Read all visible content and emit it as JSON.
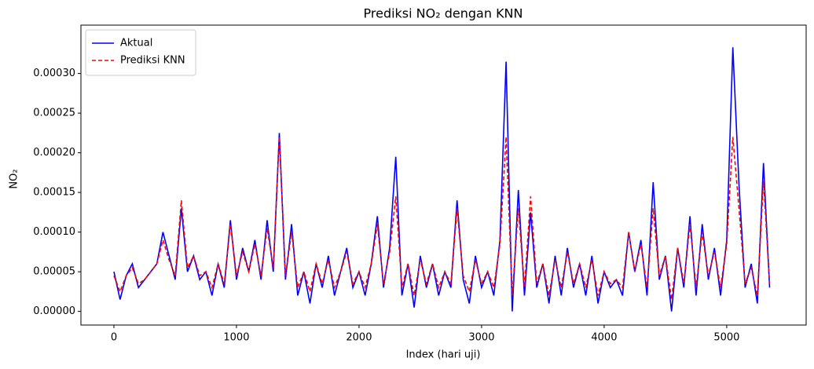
{
  "chart_data": {
    "type": "line",
    "title": "Prediksi NO₂ dengan KNN",
    "xlabel": "Index (hari uji)",
    "ylabel": "NO₂",
    "x": [
      0,
      50,
      100,
      150,
      200,
      250,
      300,
      350,
      400,
      450,
      500,
      550,
      600,
      650,
      700,
      750,
      800,
      850,
      900,
      950,
      1000,
      1050,
      1100,
      1150,
      1200,
      1250,
      1300,
      1350,
      1400,
      1450,
      1500,
      1550,
      1600,
      1650,
      1700,
      1750,
      1800,
      1850,
      1900,
      1950,
      2000,
      2050,
      2100,
      2150,
      2200,
      2250,
      2300,
      2350,
      2400,
      2450,
      2500,
      2550,
      2600,
      2650,
      2700,
      2750,
      2800,
      2850,
      2900,
      2950,
      3000,
      3050,
      3100,
      3150,
      3200,
      3250,
      3300,
      3350,
      3400,
      3450,
      3500,
      3550,
      3600,
      3650,
      3700,
      3750,
      3800,
      3850,
      3900,
      3950,
      4000,
      4050,
      4100,
      4150,
      4200,
      4250,
      4300,
      4350,
      4400,
      4450,
      4500,
      4550,
      4600,
      4650,
      4700,
      4750,
      4800,
      4850,
      4900,
      4950,
      5000,
      5050,
      5100,
      5150,
      5200,
      5250,
      5300,
      5350
    ],
    "series": [
      {
        "name": "Aktual",
        "color": "#0000ff",
        "dash": false,
        "values": [
          5e-05,
          1.5e-05,
          4.5e-05,
          6e-05,
          3e-05,
          4e-05,
          5e-05,
          6e-05,
          0.0001,
          7e-05,
          4e-05,
          0.00013,
          5e-05,
          7e-05,
          4e-05,
          5e-05,
          2e-05,
          6e-05,
          3e-05,
          0.000115,
          4e-05,
          8e-05,
          5e-05,
          9e-05,
          4e-05,
          0.000115,
          5e-05,
          0.000225,
          4e-05,
          0.00011,
          2e-05,
          5e-05,
          1e-05,
          6e-05,
          3e-05,
          7e-05,
          2e-05,
          5e-05,
          8e-05,
          3e-05,
          5e-05,
          2e-05,
          6e-05,
          0.00012,
          3e-05,
          8e-05,
          0.000195,
          2e-05,
          6e-05,
          5e-06,
          7e-05,
          3e-05,
          6e-05,
          2e-05,
          5e-05,
          3e-05,
          0.00014,
          4e-05,
          1e-05,
          7e-05,
          3e-05,
          5e-05,
          2e-05,
          9e-05,
          0.000315,
          0,
          0.000153,
          2e-05,
          0.000125,
          3e-05,
          6e-05,
          1e-05,
          7e-05,
          2e-05,
          8e-05,
          3e-05,
          6e-05,
          2e-05,
          7e-05,
          1e-05,
          5e-05,
          3e-05,
          4e-05,
          2e-05,
          0.0001,
          5e-05,
          9e-05,
          2e-05,
          0.000163,
          4e-05,
          7e-05,
          0,
          8e-05,
          3e-05,
          0.00012,
          2e-05,
          0.00011,
          4e-05,
          8e-05,
          2e-05,
          9e-05,
          0.000333,
          0.00016,
          3e-05,
          6e-05,
          1e-05,
          0.000187,
          3e-05
        ]
      },
      {
        "name": "Prediksi KNN",
        "color": "#ff0000",
        "dash": true,
        "values": [
          4.5e-05,
          2.5e-05,
          4.5e-05,
          5.5e-05,
          3.5e-05,
          4e-05,
          5e-05,
          6e-05,
          9e-05,
          6.5e-05,
          4.5e-05,
          0.00014,
          5.5e-05,
          7e-05,
          4.5e-05,
          5e-05,
          3e-05,
          6e-05,
          3.5e-05,
          0.00011,
          4.5e-05,
          7.5e-05,
          5e-05,
          8.5e-05,
          4.5e-05,
          0.000105,
          5.5e-05,
          0.00022,
          4.5e-05,
          0.0001,
          3e-05,
          5e-05,
          2.5e-05,
          6e-05,
          3.5e-05,
          6.5e-05,
          3e-05,
          5e-05,
          7.5e-05,
          3.5e-05,
          5e-05,
          3e-05,
          6e-05,
          0.00011,
          3.5e-05,
          7.5e-05,
          0.000145,
          3e-05,
          6e-05,
          2e-05,
          6.5e-05,
          3.5e-05,
          6e-05,
          3e-05,
          5e-05,
          3.5e-05,
          0.00013,
          4.5e-05,
          2.5e-05,
          6.5e-05,
          3.5e-05,
          5e-05,
          3e-05,
          8.5e-05,
          0.00022,
          2e-05,
          0.00013,
          3e-05,
          0.000145,
          3.5e-05,
          6e-05,
          2e-05,
          6.5e-05,
          3e-05,
          7.5e-05,
          3.5e-05,
          6e-05,
          3e-05,
          6.5e-05,
          2e-05,
          5e-05,
          3.5e-05,
          4e-05,
          3e-05,
          0.0001,
          5e-05,
          8.5e-05,
          3e-05,
          0.00013,
          4.5e-05,
          7e-05,
          1.5e-05,
          8e-05,
          3.5e-05,
          0.00011,
          3e-05,
          0.0001,
          4.5e-05,
          7.5e-05,
          3e-05,
          8.5e-05,
          0.00022,
          0.00013,
          3.5e-05,
          5.5e-05,
          2e-05,
          0.000165,
          3.5e-05
        ]
      }
    ],
    "xlim": [
      -269,
      5648
    ],
    "ylim": [
      -1.72e-05,
      0.000361
    ],
    "xticks": [
      0,
      1000,
      2000,
      3000,
      4000,
      5000
    ],
    "yticks": [
      {
        "value": 0,
        "label": "0.00000"
      },
      {
        "value": 5e-05,
        "label": "0.00005"
      },
      {
        "value": 0.0001,
        "label": "0.00010"
      },
      {
        "value": 0.00015,
        "label": "0.00015"
      },
      {
        "value": 0.0002,
        "label": "0.00020"
      },
      {
        "value": 0.00025,
        "label": "0.00025"
      },
      {
        "value": 0.0003,
        "label": "0.00030"
      }
    ],
    "legend": "upper-left"
  }
}
